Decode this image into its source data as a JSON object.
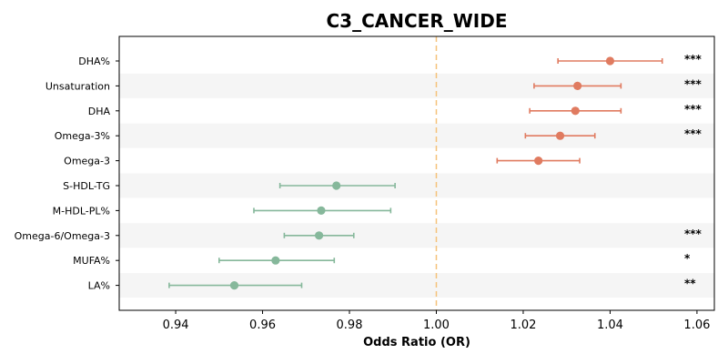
{
  "colors": {
    "positive": "#e07b60",
    "negative": "#86b89b",
    "reference_line": "#f5c27a",
    "band": "#f5f5f5"
  },
  "chart_data": {
    "type": "forest",
    "title": "C3_CANCER_WIDE",
    "xlabel": "Odds Ratio (OR)",
    "ylabel": "",
    "xlim": [
      0.927,
      1.064
    ],
    "xticks": [
      0.94,
      0.96,
      0.98,
      1.0,
      1.02,
      1.04,
      1.06
    ],
    "xtick_labels": [
      "0.94",
      "0.96",
      "0.98",
      "1.00",
      "1.02",
      "1.04",
      "1.06"
    ],
    "reference_line": 1.0,
    "grid": false,
    "rows": [
      {
        "label": "DHA%",
        "or": 1.04,
        "ci_low": 1.028,
        "ci_high": 1.052,
        "sig": "***",
        "direction": "positive"
      },
      {
        "label": "Unsaturation",
        "or": 1.0325,
        "ci_low": 1.0225,
        "ci_high": 1.0425,
        "sig": "***",
        "direction": "positive"
      },
      {
        "label": "DHA",
        "or": 1.032,
        "ci_low": 1.0215,
        "ci_high": 1.0425,
        "sig": "***",
        "direction": "positive"
      },
      {
        "label": "Omega-3%",
        "or": 1.0285,
        "ci_low": 1.0205,
        "ci_high": 1.0365,
        "sig": "***",
        "direction": "positive"
      },
      {
        "label": "Omega-3",
        "or": 1.0235,
        "ci_low": 1.014,
        "ci_high": 1.033,
        "sig": "",
        "direction": "positive"
      },
      {
        "label": "S-HDL-TG",
        "or": 0.977,
        "ci_low": 0.964,
        "ci_high": 0.9905,
        "sig": "",
        "direction": "negative"
      },
      {
        "label": "M-HDL-PL%",
        "or": 0.9735,
        "ci_low": 0.958,
        "ci_high": 0.9895,
        "sig": "",
        "direction": "negative"
      },
      {
        "label": "Omega-6/Omega-3",
        "or": 0.973,
        "ci_low": 0.965,
        "ci_high": 0.981,
        "sig": "***",
        "direction": "negative"
      },
      {
        "label": "MUFA%",
        "or": 0.963,
        "ci_low": 0.95,
        "ci_high": 0.9765,
        "sig": "*",
        "direction": "negative"
      },
      {
        "label": "LA%",
        "or": 0.9535,
        "ci_low": 0.9385,
        "ci_high": 0.969,
        "sig": "**",
        "direction": "negative"
      }
    ]
  }
}
